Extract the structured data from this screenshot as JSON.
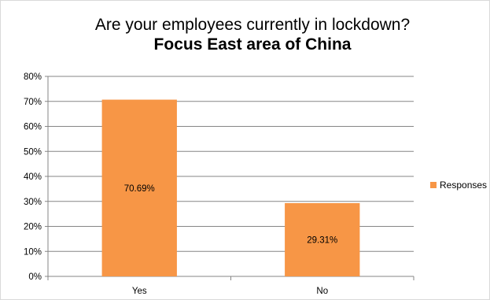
{
  "chart_data": {
    "type": "bar",
    "title": "Are your employees currently in lockdown?",
    "subtitle": "Focus East area of China",
    "categories": [
      "Yes",
      "No"
    ],
    "series": [
      {
        "name": "Responses",
        "values": [
          70.69,
          29.31
        ],
        "data_labels": [
          "70.69%",
          "29.31%"
        ],
        "color": "#F79646"
      }
    ],
    "y_ticks": [
      "0%",
      "10%",
      "20%",
      "30%",
      "40%",
      "50%",
      "60%",
      "70%",
      "80%"
    ],
    "ylim": [
      0,
      80
    ],
    "grid": true,
    "legend_position": "right",
    "xlabel": "",
    "ylabel": ""
  }
}
